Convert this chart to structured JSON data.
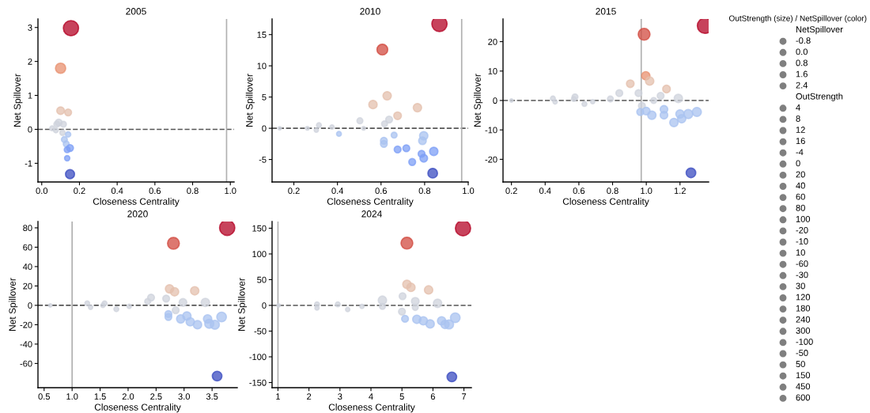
{
  "chart_data": [
    {
      "type": "bubble",
      "title": "2005",
      "xlabel": "Closeness Centrality",
      "ylabel": "Net Spillover",
      "xlim": [
        -0.02,
        1.02
      ],
      "ylim": [
        -1.55,
        3.25
      ],
      "xticks": [
        {
          "value": 0,
          "label": "0.0"
        },
        0.2,
        0.4,
        0.6,
        0.8,
        {
          "value": 1,
          "label": "1.0"
        }
      ],
      "yticks": [
        -1,
        0,
        1,
        2,
        3
      ],
      "x": [
        0.155,
        0.1,
        0.1,
        0.14,
        0.09,
        0.08,
        0.115,
        0.055,
        0.075,
        0.11,
        0.14,
        0.12,
        0.13,
        0.15,
        0.135,
        0.135,
        0.15
      ],
      "values": [
        2.98,
        1.8,
        0.55,
        0.5,
        0.2,
        0.15,
        0.15,
        0.03,
        -0.03,
        -0.1,
        -0.15,
        -0.3,
        -0.43,
        -0.55,
        -0.6,
        -0.85,
        -1.32
      ],
      "sizes": [
        1,
        0.45,
        0.25,
        0.2,
        0.2,
        0.15,
        0.15,
        0.1,
        0.1,
        0.12,
        0.12,
        0.15,
        0.15,
        0.2,
        0.15,
        0.12,
        0.35
      ],
      "colors": [
        "#b40426",
        "#e8906f",
        "#e4c0ae",
        "#e4c0ae",
        "#cfd3dc",
        "#cfd3dc",
        "#cfd3dc",
        "#cfd3dc",
        "#cfd3dc",
        "#cfd3dc",
        "#aac3f0",
        "#aac3f0",
        "#aac3f0",
        "#7d9ff6",
        "#7d9ff6",
        "#7d9ff6",
        "#3b4cc0"
      ],
      "ref_lines": [
        {
          "axis": "y",
          "value": 0,
          "color": "#555555",
          "line_style": "dashed"
        },
        {
          "axis": "x",
          "value": 0.98,
          "color": "#b0b0b0",
          "line_style": "solid"
        }
      ]
    },
    {
      "type": "bubble",
      "title": "2010",
      "xlabel": "Closeness Centrality",
      "ylabel": "Net Spillover",
      "xlim": [
        0.1,
        1.0
      ],
      "ylim": [
        -8.6,
        17.5
      ],
      "xticks": [
        0.2,
        0.4,
        0.6,
        0.8,
        {
          "value": 1,
          "label": "1.0"
        }
      ],
      "yticks": [
        -5,
        0,
        5,
        10,
        15
      ],
      "x": [
        0.868,
        0.606,
        0.628,
        0.563,
        0.767,
        0.676,
        0.637,
        0.503,
        0.616,
        0.315,
        0.303,
        0.375,
        0.262,
        0.135,
        0.407,
        0.52,
        0.613,
        0.613,
        0.66,
        0.676,
        0.716,
        0.796,
        0.79,
        0.786,
        0.796,
        0.743,
        0.842,
        0.837
      ],
      "values": [
        16.7,
        12.6,
        5.2,
        3.8,
        3.3,
        2.0,
        1.4,
        1.2,
        0.7,
        0.5,
        -0.3,
        0.2,
        0,
        0,
        -0.9,
        0,
        -2.0,
        -2.5,
        -1.1,
        -3.4,
        -3.2,
        -1.2,
        -2.0,
        -4.1,
        -4.8,
        -5.4,
        -3.7,
        -7.2
      ],
      "sizes": [
        1,
        0.5,
        0.3,
        0.3,
        0.3,
        0.25,
        0.2,
        0.15,
        0.15,
        0.1,
        0.08,
        0.08,
        0.06,
        0.05,
        0.1,
        0.06,
        0.2,
        0.2,
        0.15,
        0.2,
        0.2,
        0.3,
        0.25,
        0.2,
        0.25,
        0.2,
        0.3,
        0.4
      ],
      "colors": [
        "#b40426",
        "#d24b40",
        "#e4c0ae",
        "#e4c0ae",
        "#e4c0ae",
        "#e4c0ae",
        "#cfd3dc",
        "#cfd3dc",
        "#cfd3dc",
        "#cfd3dc",
        "#cfd3dc",
        "#cfd3dc",
        "#cfd3dc",
        "#cfd3dc",
        "#aac3f0",
        "#cfd3dc",
        "#aac3f0",
        "#aac3f0",
        "#aac3f0",
        "#7d9ff6",
        "#7d9ff6",
        "#aac3f0",
        "#aac3f0",
        "#7d9ff6",
        "#7d9ff6",
        "#7d9ff6",
        "#7d9ff6",
        "#3b4cc0"
      ],
      "ref_lines": [
        {
          "axis": "y",
          "value": 0,
          "color": "#555555",
          "line_style": "dashed"
        },
        {
          "axis": "x",
          "value": 0.97,
          "color": "#b0b0b0",
          "line_style": "solid"
        }
      ]
    },
    {
      "type": "bubble",
      "title": "2015",
      "xlabel": "Closeness Centrality",
      "ylabel": "Net Spillover",
      "xlim": [
        0.15,
        1.37
      ],
      "ylim": [
        -27.7,
        27.7
      ],
      "xticks": [
        0.2,
        0.4,
        0.6,
        0.8,
        {
          "value": 1,
          "label": "1.0"
        },
        1.2
      ],
      "yticks": [
        -20,
        -10,
        0,
        10,
        20
      ],
      "x": [
        1.348,
        0.987,
        0.997,
        1.02,
        0.905,
        1.12,
        0.954,
        0.84,
        1.085,
        0.787,
        0.577,
        0.57,
        0.446,
        0.459,
        0.633,
        0.682,
        0.2,
        1.19,
        1.044,
        0.974,
        0.964,
        1.0,
        1.033,
        1.105,
        1.105,
        1.164,
        1.2,
        1.21,
        1.249,
        1.3,
        1.265
      ],
      "values": [
        25.4,
        22.5,
        8.4,
        6.6,
        5.7,
        3.9,
        2.5,
        2.5,
        1.6,
        0.5,
        1.2,
        0.5,
        0.7,
        -0.5,
        -1.2,
        -0.4,
        0,
        0.7,
        0,
        -1.8,
        -3.9,
        -3.6,
        -5.0,
        -3.0,
        -5.0,
        -7.5,
        -4.6,
        -6.2,
        -4.6,
        -3.9,
        -24.6
      ],
      "sizes": [
        1,
        0.6,
        0.3,
        0.3,
        0.25,
        0.25,
        0.2,
        0.2,
        0.2,
        0.15,
        0.15,
        0.1,
        0.1,
        0.08,
        0.1,
        0.08,
        0.05,
        0.3,
        0.15,
        0.2,
        0.2,
        0.25,
        0.3,
        0.25,
        0.25,
        0.3,
        0.3,
        0.3,
        0.35,
        0.35,
        0.4
      ],
      "colors": [
        "#b40426",
        "#d24b40",
        "#e8906f",
        "#e4c0ae",
        "#e4c0ae",
        "#e4c0ae",
        "#cfd3dc",
        "#cfd3dc",
        "#cfd3dc",
        "#cfd3dc",
        "#cfd3dc",
        "#cfd3dc",
        "#cfd3dc",
        "#cfd3dc",
        "#cfd3dc",
        "#cfd3dc",
        "#cfd3dc",
        "#cfd3dc",
        "#cfd3dc",
        "#cfd3dc",
        "#aac3f0",
        "#aac3f0",
        "#aac3f0",
        "#aac3f0",
        "#aac3f0",
        "#aac3f0",
        "#aac3f0",
        "#aac3f0",
        "#aac3f0",
        "#aac3f0",
        "#3b4cc0"
      ],
      "ref_lines": [
        {
          "axis": "y",
          "value": 0,
          "color": "#555555",
          "line_style": "dashed"
        },
        {
          "axis": "x",
          "value": 0.97,
          "color": "#b0b0b0",
          "line_style": "solid"
        }
      ]
    },
    {
      "type": "bubble",
      "title": "2020",
      "xlabel": "Closeness Centrality",
      "ylabel": "Net Spillover",
      "xlim": [
        0.39,
        3.95
      ],
      "ylim": [
        -85,
        86.5
      ],
      "xticks": [
        0.5,
        {
          "value": 1,
          "label": "1.0"
        },
        1.5,
        {
          "value": 2,
          "label": "2.0"
        },
        2.5,
        {
          "value": 3,
          "label": "3.0"
        },
        3.5
      ],
      "yticks": [
        -60,
        -40,
        -20,
        0,
        20,
        40,
        60,
        80
      ],
      "x": [
        3.77,
        2.81,
        2.74,
        2.83,
        3.19,
        2.68,
        2.41,
        2.35,
        2.98,
        3.38,
        1.27,
        1.33,
        1.58,
        1.55,
        1.79,
        2.02,
        0.61,
        2.85,
        2.72,
        2.72,
        2.94,
        3.05,
        3.11,
        3.24,
        3.42,
        3.45,
        3.55,
        3.67,
        3.59
      ],
      "values": [
        80,
        64,
        17,
        14,
        15,
        7,
        8,
        4,
        3,
        3,
        2,
        -2,
        2,
        0,
        -4,
        -1,
        0,
        -5,
        -9,
        -12,
        -14,
        -11,
        -17,
        -20,
        -14,
        -19,
        -20,
        -12,
        -73
      ],
      "sizes": [
        1,
        0.6,
        0.3,
        0.3,
        0.3,
        0.2,
        0.2,
        0.15,
        0.25,
        0.3,
        0.1,
        0.08,
        0.1,
        0.08,
        0.1,
        0.08,
        0.05,
        0.2,
        0.2,
        0.2,
        0.3,
        0.3,
        0.3,
        0.3,
        0.3,
        0.35,
        0.35,
        0.4,
        0.4
      ],
      "colors": [
        "#b40426",
        "#d24b40",
        "#e4c0ae",
        "#e4c0ae",
        "#e4c0ae",
        "#cfd3dc",
        "#cfd3dc",
        "#cfd3dc",
        "#cfd3dc",
        "#cfd3dc",
        "#cfd3dc",
        "#cfd3dc",
        "#cfd3dc",
        "#cfd3dc",
        "#cfd3dc",
        "#cfd3dc",
        "#cfd3dc",
        "#cfd3dc",
        "#aac3f0",
        "#aac3f0",
        "#aac3f0",
        "#aac3f0",
        "#aac3f0",
        "#aac3f0",
        "#aac3f0",
        "#aac3f0",
        "#aac3f0",
        "#aac3f0",
        "#3b4cc0"
      ],
      "ref_lines": [
        {
          "axis": "y",
          "value": 0,
          "color": "#555555",
          "line_style": "dashed"
        },
        {
          "axis": "x",
          "value": 1.0,
          "color": "#b0b0b0",
          "line_style": "solid"
        }
      ]
    },
    {
      "type": "bubble",
      "title": "2024",
      "xlabel": "Closeness Centrality",
      "ylabel": "Net Spillover",
      "xlim": [
        0.81,
        7.24
      ],
      "ylim": [
        -160,
        163
      ],
      "xticks": [
        1,
        2,
        3,
        4,
        5,
        6,
        7
      ],
      "yticks": [
        -150,
        -100,
        -50,
        0,
        50,
        100,
        150
      ],
      "x": [
        6.97,
        5.16,
        5.16,
        5.29,
        5.86,
        5.02,
        4.37,
        5.43,
        6.15,
        2.26,
        2.26,
        2.93,
        3.25,
        3.71,
        1.02,
        4.37,
        5.43,
        5.0,
        5.1,
        5.48,
        5.69,
        5.91,
        6.28,
        6.39,
        6.52,
        6.72,
        6.61
      ],
      "values": [
        150,
        121,
        41,
        35,
        30,
        18,
        10,
        8,
        4,
        2,
        -5,
        2,
        -8,
        -2,
        0,
        -2,
        -4,
        -12,
        -26,
        -27,
        -30,
        -36,
        -30,
        -37,
        -37,
        -24,
        -139
      ],
      "sizes": [
        1,
        0.6,
        0.3,
        0.3,
        0.3,
        0.2,
        0.3,
        0.25,
        0.3,
        0.1,
        0.08,
        0.1,
        0.08,
        0.08,
        0.05,
        0.15,
        0.15,
        0.2,
        0.2,
        0.3,
        0.3,
        0.3,
        0.3,
        0.3,
        0.35,
        0.4,
        0.4
      ],
      "colors": [
        "#b40426",
        "#d24b40",
        "#e4c0ae",
        "#e4c0ae",
        "#e4c0ae",
        "#cfd3dc",
        "#cfd3dc",
        "#cfd3dc",
        "#cfd3dc",
        "#cfd3dc",
        "#cfd3dc",
        "#cfd3dc",
        "#cfd3dc",
        "#cfd3dc",
        "#cfd3dc",
        "#cfd3dc",
        "#cfd3dc",
        "#cfd3dc",
        "#aac3f0",
        "#aac3f0",
        "#aac3f0",
        "#aac3f0",
        "#aac3f0",
        "#aac3f0",
        "#aac3f0",
        "#aac3f0",
        "#3b4cc0"
      ],
      "ref_lines": [
        {
          "axis": "y",
          "value": 0,
          "color": "#555555",
          "line_style": "dashed"
        },
        {
          "axis": "x",
          "value": 1.0,
          "color": "#b0b0b0",
          "line_style": "solid"
        }
      ]
    },
    {
      "type": "other",
      "title": "OutStrength (size) / NetSpillover (color)",
      "subtitle": "NetSpillover",
      "annotations": [
        "-0.8",
        "0.0",
        "0.8",
        "1.6",
        "2.4"
      ]
    },
    {
      "type": "other",
      "title": "OutStrength",
      "annotations": [
        "4",
        "8",
        "12",
        "16",
        "-4",
        "0",
        "20",
        "40",
        "60",
        "80",
        "100",
        "-20",
        "-10",
        "10",
        "-60",
        "-30",
        "30",
        "120",
        "180",
        "240",
        "300",
        "-100",
        "-50",
        "50",
        "150",
        "450",
        "600"
      ]
    }
  ]
}
